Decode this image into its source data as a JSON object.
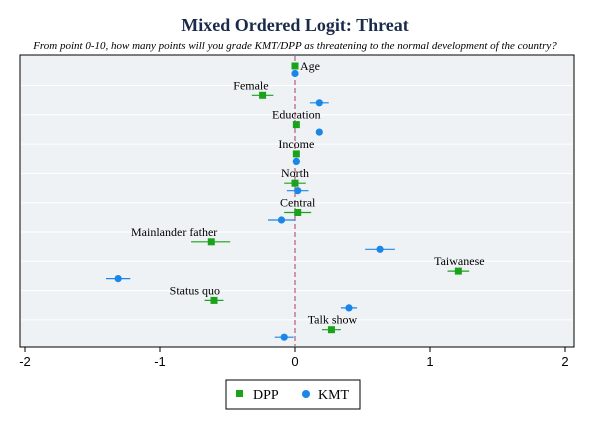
{
  "chart_data": {
    "type": "scatter",
    "title": "Mixed Ordered Logit: Threat",
    "subtitle": "From point 0-10, how many points will you grade KMT/DPP as threatening to the normal development of the country?",
    "xlim": [
      -2,
      2
    ],
    "xticks": [
      "-2",
      "-1",
      "0",
      "1",
      "2"
    ],
    "reference_line_x": 0,
    "grid": "horizontal",
    "legend_position": "bottom",
    "colors": {
      "DPP": "#1aa31a",
      "KMT": "#1a86e8",
      "reference_line": "#b03a6a",
      "plot_background": "#eef2f5",
      "grid": "#ffffff",
      "title": "#1a2a4a"
    },
    "series": [
      {
        "name": "DPP",
        "marker": "square",
        "values": [
          {
            "var": "Age",
            "est": 0.0,
            "lo": -0.01,
            "hi": 0.01
          },
          {
            "var": "Female",
            "est": -0.24,
            "lo": -0.32,
            "hi": -0.16
          },
          {
            "var": "Education",
            "est": 0.01,
            "lo": -0.01,
            "hi": 0.03
          },
          {
            "var": "Income",
            "est": 0.01,
            "lo": 0.0,
            "hi": 0.02
          },
          {
            "var": "North",
            "est": 0.0,
            "lo": -0.08,
            "hi": 0.08
          },
          {
            "var": "Central",
            "est": 0.02,
            "lo": -0.08,
            "hi": 0.12
          },
          {
            "var": "Mainlander father",
            "est": -0.62,
            "lo": -0.77,
            "hi": -0.48
          },
          {
            "var": "Taiwanese",
            "est": 1.21,
            "lo": 1.13,
            "hi": 1.29
          },
          {
            "var": "Status quo",
            "est": -0.6,
            "lo": -0.67,
            "hi": -0.53
          },
          {
            "var": "Talk show",
            "est": 0.27,
            "lo": 0.2,
            "hi": 0.34
          }
        ]
      },
      {
        "name": "KMT",
        "marker": "circle",
        "values": [
          {
            "var": "Age",
            "est": 0.0,
            "lo": -0.01,
            "hi": 0.01
          },
          {
            "var": "Female",
            "est": 0.18,
            "lo": 0.11,
            "hi": 0.25
          },
          {
            "var": "Education",
            "est": 0.18,
            "lo": 0.16,
            "hi": 0.2
          },
          {
            "var": "Income",
            "est": 0.01,
            "lo": 0.0,
            "hi": 0.02
          },
          {
            "var": "North",
            "est": 0.02,
            "lo": -0.06,
            "hi": 0.1
          },
          {
            "var": "Central",
            "est": -0.1,
            "lo": -0.2,
            "hi": 0.0
          },
          {
            "var": "Mainlander father",
            "est": 0.63,
            "lo": 0.52,
            "hi": 0.74
          },
          {
            "var": "Taiwanese",
            "est": -1.31,
            "lo": -1.4,
            "hi": -1.22
          },
          {
            "var": "Status quo",
            "est": 0.4,
            "lo": 0.34,
            "hi": 0.46
          },
          {
            "var": "Talk show",
            "est": -0.08,
            "lo": -0.15,
            "hi": -0.01
          }
        ]
      }
    ],
    "variables": [
      "Age",
      "Female",
      "Education",
      "Income",
      "North",
      "Central",
      "Mainlander father",
      "Taiwanese",
      "Status quo",
      "Talk show"
    ],
    "legend": [
      "DPP",
      "KMT"
    ]
  }
}
